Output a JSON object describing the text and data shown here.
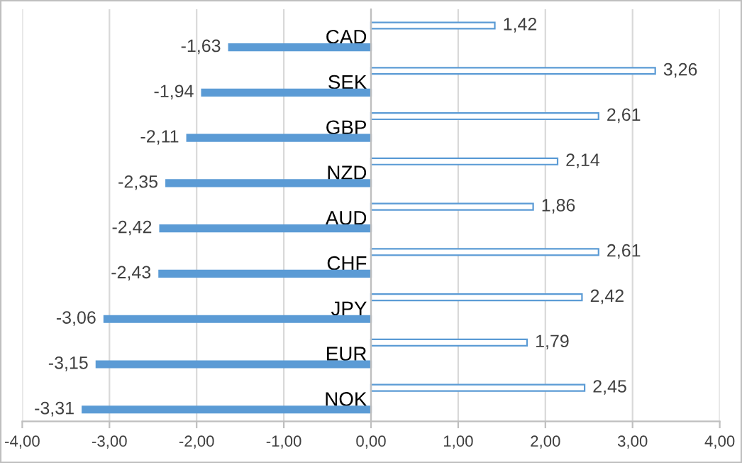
{
  "chart_data": {
    "type": "bar",
    "orientation": "horizontal",
    "categories": [
      "CAD",
      "SEK",
      "GBP",
      "NZD",
      "AUD",
      "CHF",
      "JPY",
      "EUR",
      "NOK"
    ],
    "series": [
      {
        "color": "#5b9bd5",
        "values": [
          1.42,
          3.26,
          2.61,
          2.14,
          1.86,
          2.61,
          2.42,
          1.79,
          2.45
        ],
        "value_labels": [
          "1,42",
          "3,26",
          "2,61",
          "2,14",
          "1,86",
          "2,61",
          "2,42",
          "1,79",
          "2,45"
        ]
      },
      {
        "color": "#5b9bd5",
        "values": [
          -1.63,
          -1.94,
          -2.11,
          -2.35,
          -2.42,
          -2.43,
          -3.06,
          -3.15,
          -3.31
        ],
        "value_labels": [
          "-1,63",
          "-1,94",
          "-2,11",
          "-2,35",
          "-2,42",
          "-2,43",
          "-3,06",
          "-3,15",
          "-3,31"
        ]
      }
    ],
    "xlim": [
      -4,
      4
    ],
    "xticks": [
      {
        "value": -4,
        "label": "-4,00"
      },
      {
        "value": -3,
        "label": "-3,00"
      },
      {
        "value": -2,
        "label": "-2,00"
      },
      {
        "value": -1,
        "label": "-1,00"
      },
      {
        "value": 0,
        "label": "0,00"
      },
      {
        "value": 1,
        "label": "1,00"
      },
      {
        "value": 2,
        "label": "2,00"
      },
      {
        "value": 3,
        "label": "3,00"
      },
      {
        "value": 4,
        "label": "4,00"
      }
    ],
    "grid": "x",
    "legend": false
  }
}
